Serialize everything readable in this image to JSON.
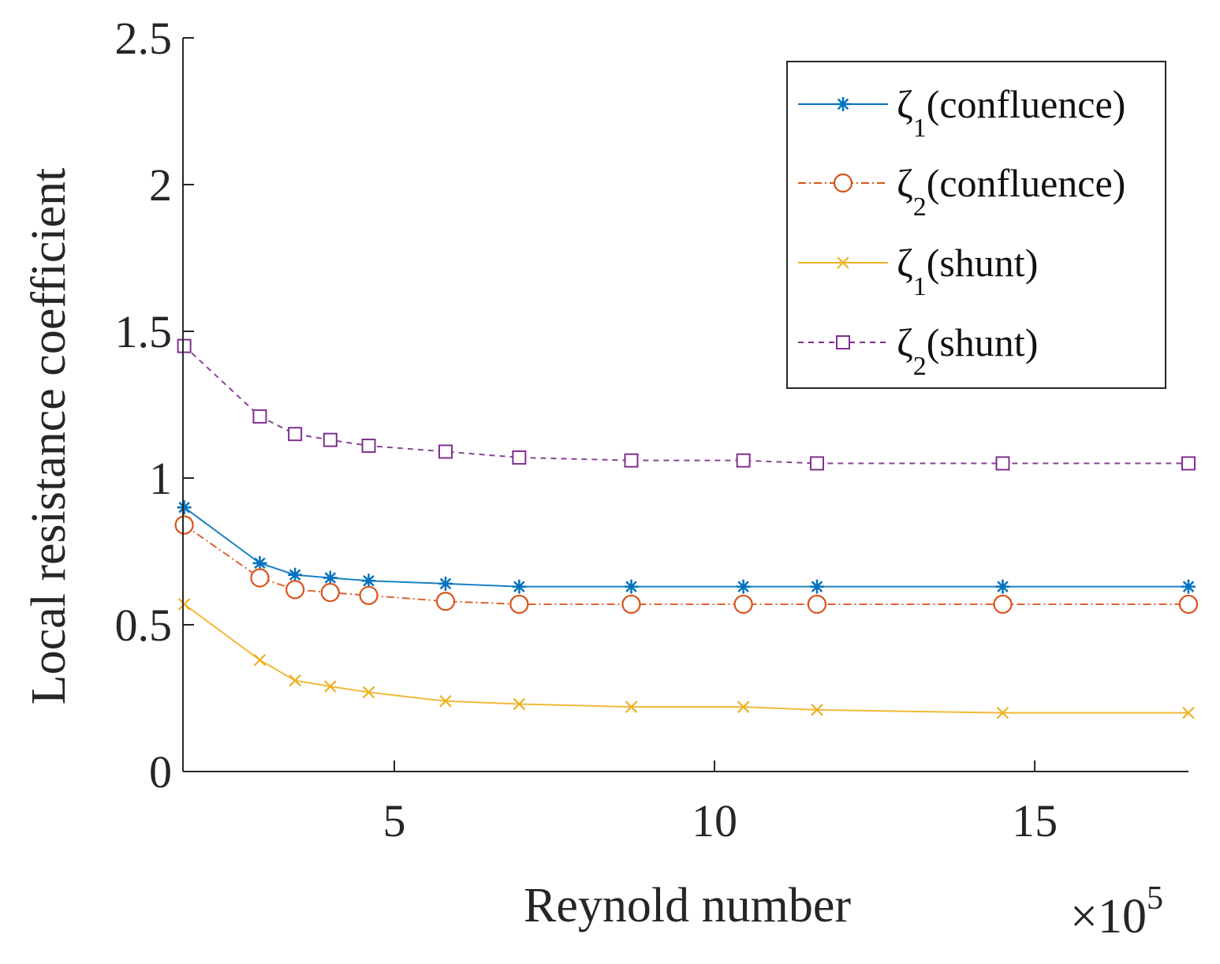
{
  "chart_data": {
    "type": "line",
    "title": "",
    "xlabel": "Reynold number",
    "ylabel": "Local resistance coefficient",
    "x_multiplier": {
      "base": "×10",
      "exponent": "5"
    },
    "xlim": [
      1.7,
      17.4
    ],
    "ylim": [
      0,
      2.5
    ],
    "xticks": [
      5,
      10,
      15
    ],
    "xtick_labels": [
      "5",
      "10",
      "15"
    ],
    "yticks": [
      0,
      0.5,
      1,
      1.5,
      2,
      2.5
    ],
    "ytick_labels": [
      "0",
      "0.5",
      "1",
      "1.5",
      "2",
      "2.5"
    ],
    "grid": false,
    "legend_position": "top-right",
    "x": [
      1.72,
      2.9,
      3.45,
      4.0,
      4.6,
      5.8,
      6.95,
      8.7,
      10.45,
      11.6,
      14.5,
      17.4
    ],
    "series": [
      {
        "name": "ζ1(confluence)",
        "symbol": "ζ",
        "subscript": "1",
        "suffix": "(confluence)",
        "color": "#0072BD",
        "marker": "star",
        "dash": "solid",
        "values": [
          0.9,
          0.71,
          0.67,
          0.66,
          0.65,
          0.64,
          0.63,
          0.63,
          0.63,
          0.63,
          0.63,
          0.63
        ]
      },
      {
        "name": "ζ2(confluence)",
        "symbol": "ζ",
        "subscript": "2",
        "suffix": "(confluence)",
        "color": "#D95319",
        "marker": "circle",
        "dash": "dashdot",
        "values": [
          0.84,
          0.66,
          0.62,
          0.61,
          0.6,
          0.58,
          0.57,
          0.57,
          0.57,
          0.57,
          0.57,
          0.57
        ]
      },
      {
        "name": "ζ1(shunt)",
        "symbol": "ζ",
        "subscript": "1",
        "suffix": "(shunt)",
        "color": "#EDB120",
        "marker": "x",
        "dash": "solid",
        "values": [
          0.57,
          0.38,
          0.31,
          0.29,
          0.27,
          0.24,
          0.23,
          0.22,
          0.22,
          0.21,
          0.2,
          0.2
        ]
      },
      {
        "name": "ζ2(shunt)",
        "symbol": "ζ",
        "subscript": "2",
        "suffix": "(shunt)",
        "color": "#7E2F8E",
        "marker": "square",
        "dash": "dashed",
        "values": [
          1.45,
          1.21,
          1.15,
          1.13,
          1.11,
          1.09,
          1.07,
          1.06,
          1.06,
          1.05,
          1.05,
          1.05
        ]
      }
    ]
  }
}
